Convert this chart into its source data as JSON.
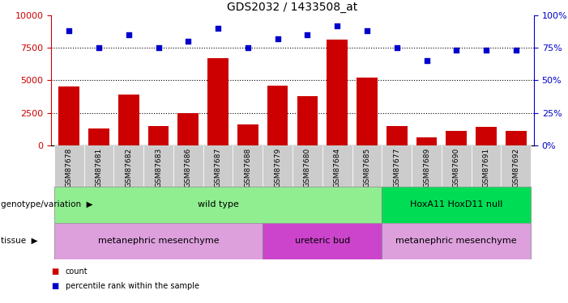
{
  "title": "GDS2032 / 1433508_at",
  "samples": [
    "GSM87678",
    "GSM87681",
    "GSM87682",
    "GSM87683",
    "GSM87686",
    "GSM87687",
    "GSM87688",
    "GSM87679",
    "GSM87680",
    "GSM87684",
    "GSM87685",
    "GSM87677",
    "GSM87689",
    "GSM87690",
    "GSM87691",
    "GSM87692"
  ],
  "counts": [
    4500,
    1300,
    3900,
    1500,
    2500,
    6700,
    1600,
    4600,
    3800,
    8100,
    5200,
    1500,
    600,
    1100,
    1400,
    1100
  ],
  "percentiles": [
    88,
    75,
    85,
    75,
    80,
    90,
    75,
    82,
    85,
    92,
    88,
    75,
    65,
    73,
    73,
    73
  ],
  "ylim_left": [
    0,
    10000
  ],
  "ylim_right": [
    0,
    100
  ],
  "yticks_left": [
    0,
    2500,
    5000,
    7500,
    10000
  ],
  "yticks_right": [
    0,
    25,
    50,
    75,
    100
  ],
  "genotype_groups": [
    {
      "label": "wild type",
      "start": 0,
      "end": 11,
      "color": "#90EE90"
    },
    {
      "label": "HoxA11 HoxD11 null",
      "start": 11,
      "end": 16,
      "color": "#00DD55"
    }
  ],
  "tissue_groups": [
    {
      "label": "metanephric mesenchyme",
      "start": 0,
      "end": 7,
      "color": "#DDA0DD"
    },
    {
      "label": "ureteric bud",
      "start": 7,
      "end": 11,
      "color": "#CC44CC"
    },
    {
      "label": "metanephric mesenchyme",
      "start": 11,
      "end": 16,
      "color": "#DDA0DD"
    }
  ],
  "bar_color": "#CC0000",
  "dot_color": "#0000CC",
  "grid_color": "#000000",
  "left_axis_color": "#CC0000",
  "right_axis_color": "#0000CC",
  "sample_bg_color": "#CCCCCC",
  "legend_items": [
    {
      "label": "count",
      "color": "#CC0000"
    },
    {
      "label": "percentile rank within the sample",
      "color": "#0000CC"
    }
  ]
}
